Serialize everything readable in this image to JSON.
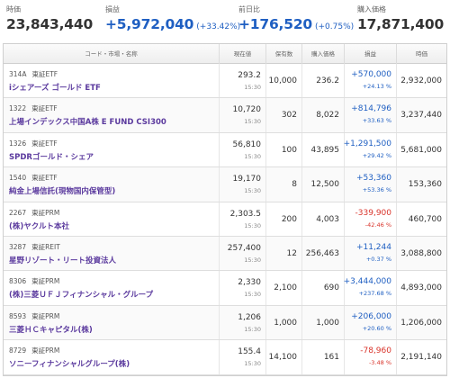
{
  "summary": [
    {
      "label": "時価",
      "value": "23,843,440",
      "pct": "",
      "style": ""
    },
    {
      "label": "損益",
      "value": "+5,972,040",
      "pct": "(+33.42%)",
      "style": "pos"
    },
    {
      "label": "前日比",
      "value": "+176,520",
      "pct": "(+0.75%)",
      "style": "pos"
    },
    {
      "label": "購入価格",
      "value": "17,871,400",
      "pct": "",
      "style": ""
    }
  ],
  "table": {
    "headers": {
      "name": "コード・市場・名称",
      "price": "現在値",
      "qty": "保有数",
      "cost": "購入価格",
      "pl": "損益",
      "mv": "時価"
    },
    "rows": [
      {
        "code": "314A",
        "market": "東証ETF",
        "name": "iシェアーズ ゴールド ETF",
        "price": "293.2",
        "time": "15:30",
        "qty": "10,000",
        "cost": "236.2",
        "pl": "+570,000",
        "pl_pct": "+24.13 %",
        "pl_sign": "pos",
        "mv": "2,932,000"
      },
      {
        "code": "1322",
        "market": "東証ETF",
        "name": "上場インデックス中国A株 E FUND CSI300",
        "price": "10,720",
        "time": "15:30",
        "qty": "302",
        "cost": "8,022",
        "pl": "+814,796",
        "pl_pct": "+33.63 %",
        "pl_sign": "pos",
        "mv": "3,237,440"
      },
      {
        "code": "1326",
        "market": "東証ETF",
        "name": "SPDRゴールド・シェア",
        "price": "56,810",
        "time": "15:30",
        "qty": "100",
        "cost": "43,895",
        "pl": "+1,291,500",
        "pl_pct": "+29.42 %",
        "pl_sign": "pos",
        "mv": "5,681,000"
      },
      {
        "code": "1540",
        "market": "東証ETF",
        "name": "純金上場信託(現物国内保管型)",
        "price": "19,170",
        "time": "15:30",
        "qty": "8",
        "cost": "12,500",
        "pl": "+53,360",
        "pl_pct": "+53.36 %",
        "pl_sign": "pos",
        "mv": "153,360"
      },
      {
        "code": "2267",
        "market": "東証PRM",
        "name": "(株)ヤクルト本社",
        "price": "2,303.5",
        "time": "15:30",
        "qty": "200",
        "cost": "4,003",
        "pl": "-339,900",
        "pl_pct": "-42.46 %",
        "pl_sign": "neg",
        "mv": "460,700"
      },
      {
        "code": "3287",
        "market": "東証REIT",
        "name": "星野リゾート・リート投資法人",
        "price": "257,400",
        "time": "15:30",
        "qty": "12",
        "cost": "256,463",
        "pl": "+11,244",
        "pl_pct": "+0.37 %",
        "pl_sign": "pos",
        "mv": "3,088,800"
      },
      {
        "code": "8306",
        "market": "東証PRM",
        "name": "(株)三菱ＵＦＪフィナンシャル・グループ",
        "price": "2,330",
        "time": "15:30",
        "qty": "2,100",
        "cost": "690",
        "pl": "+3,444,000",
        "pl_pct": "+237.68 %",
        "pl_sign": "pos",
        "mv": "4,893,000"
      },
      {
        "code": "8593",
        "market": "東証PRM",
        "name": "三菱ＨＣキャピタル(株)",
        "price": "1,206",
        "time": "15:30",
        "qty": "1,000",
        "cost": "1,000",
        "pl": "+206,000",
        "pl_pct": "+20.60 %",
        "pl_sign": "pos",
        "mv": "1,206,000"
      },
      {
        "code": "8729",
        "market": "東証PRM",
        "name": "ソニーフィナンシャルグループ(株)",
        "price": "155.4",
        "time": "15:30",
        "qty": "14,100",
        "cost": "161",
        "pl": "-78,960",
        "pl_pct": "-3.48 %",
        "pl_sign": "neg",
        "mv": "2,191,140"
      }
    ]
  },
  "colors": {
    "positive": "#1f5fc2",
    "negative": "#d9342b",
    "name_link": "#5b3a9e"
  }
}
